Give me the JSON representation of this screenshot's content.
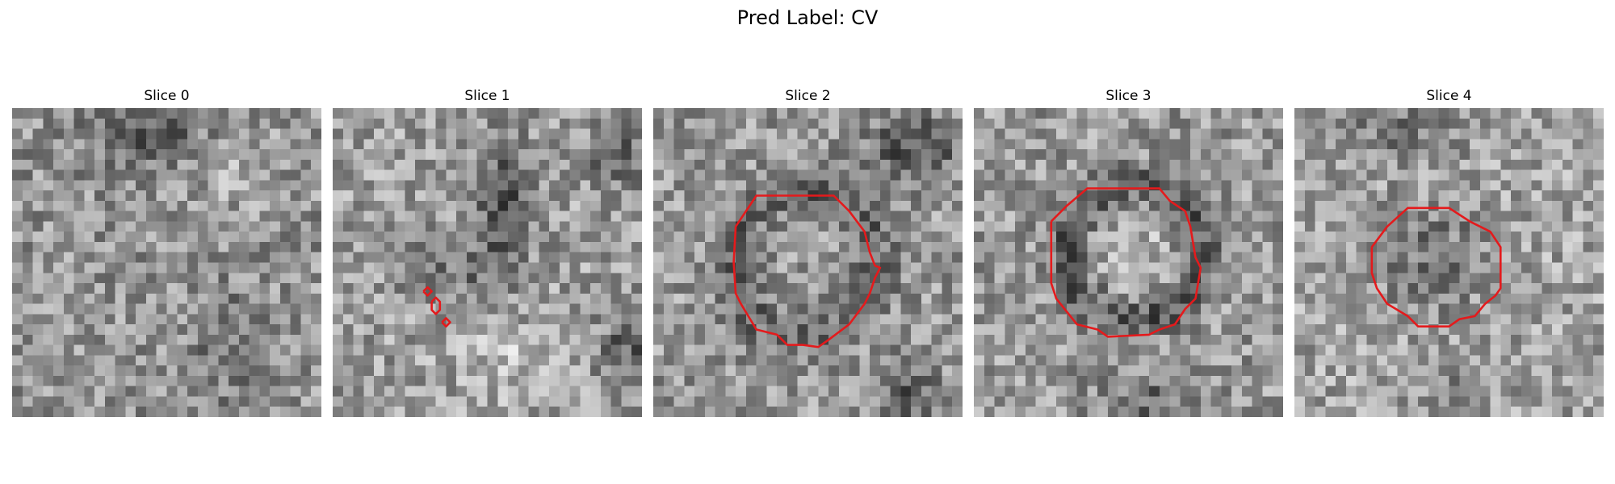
{
  "figure": {
    "title": "Pred Label: CV"
  },
  "panels": [
    {
      "title": "Slice 0",
      "seed": 11,
      "contours": []
    },
    {
      "title": "Slice 1",
      "seed": 23,
      "contours": [
        "small-blob-contour"
      ]
    },
    {
      "title": "Slice 2",
      "seed": 37,
      "contours": [
        "ring-contour"
      ]
    },
    {
      "title": "Slice 3",
      "seed": 41,
      "contours": [
        "ring-contour"
      ]
    },
    {
      "title": "Slice 4",
      "seed": 53,
      "contours": [
        "ring-contour"
      ]
    }
  ],
  "colors": {
    "contour": "#e41a1c",
    "background": "#ffffff"
  },
  "grid_cells": 30
}
